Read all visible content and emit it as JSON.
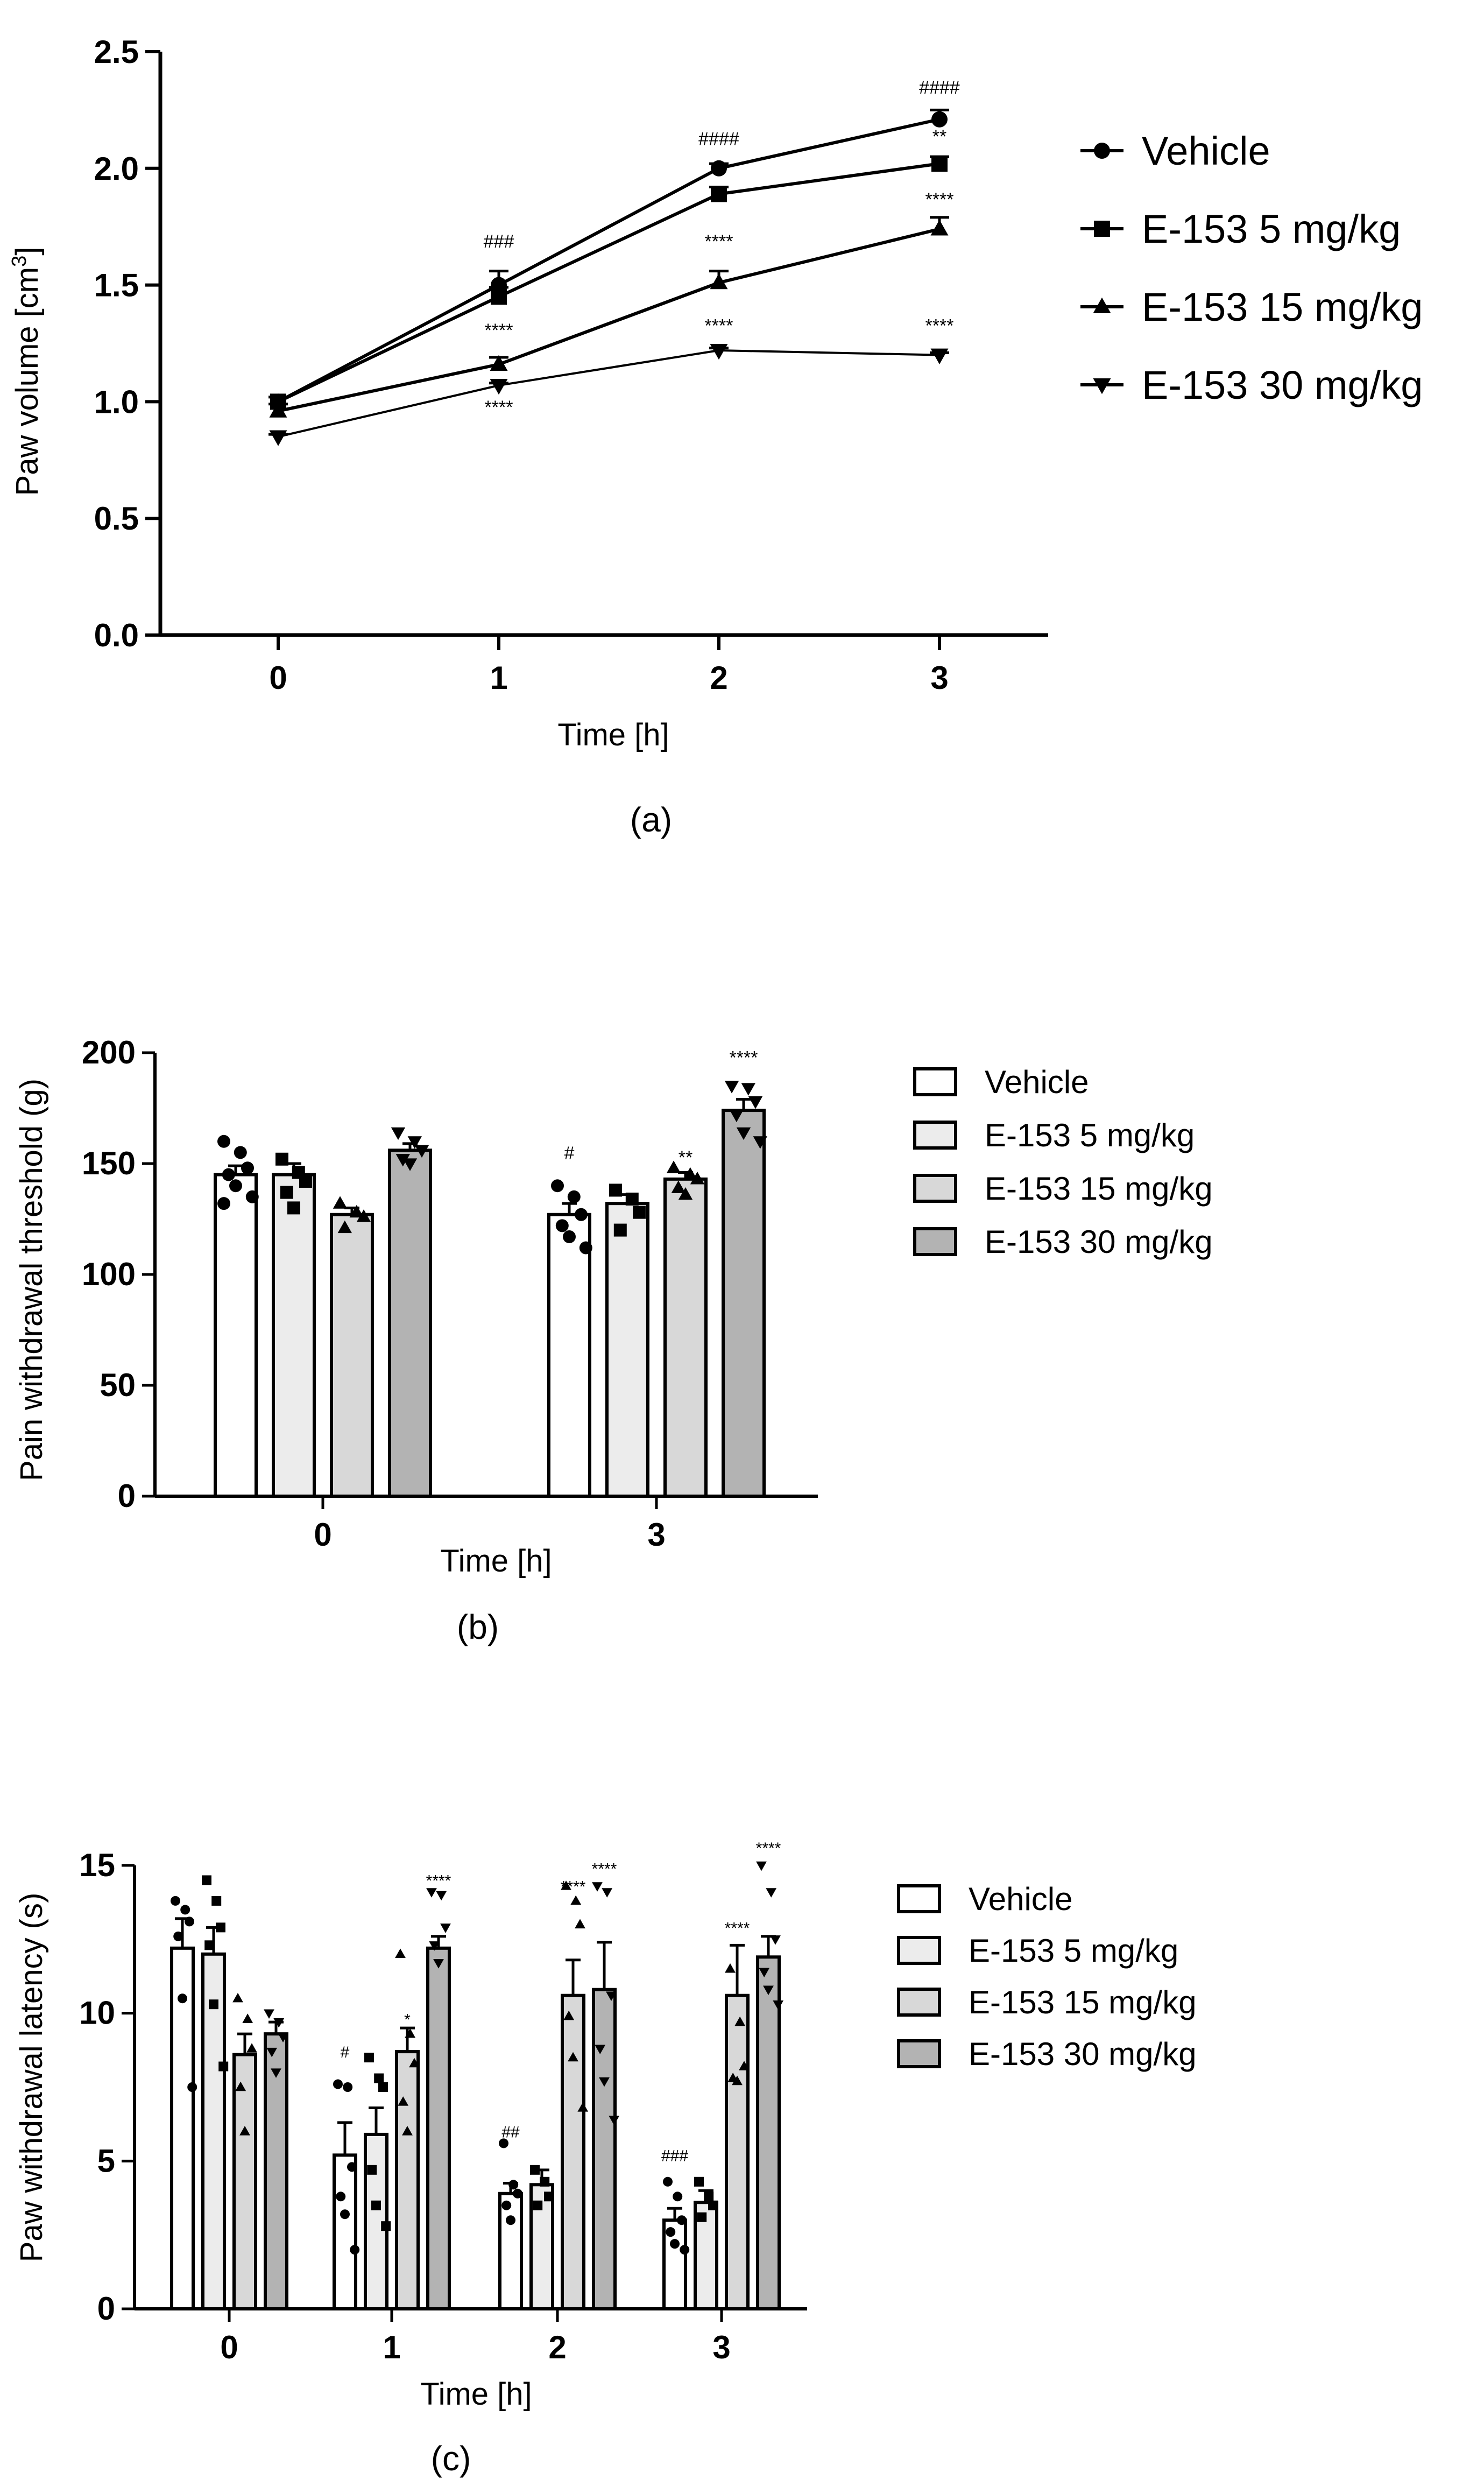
{
  "chart_data": [
    {
      "type": "line",
      "caption": "(a)",
      "xlabel": "Time [h]",
      "ylabel": "Paw volume [cm",
      "ylabel_sup": "3",
      "ylabel_end": "]",
      "x": [
        0,
        1,
        2,
        3
      ],
      "xticks": [
        "0",
        "1",
        "2",
        "3"
      ],
      "ylim": [
        0,
        2.5
      ],
      "yticks": [
        "0.0",
        "0.5",
        "1.0",
        "1.5",
        "2.0",
        "2.5"
      ],
      "series": [
        {
          "name": "Vehicle",
          "marker": "circle",
          "values": [
            1.0,
            1.5,
            2.0,
            2.21
          ],
          "errors": [
            0.02,
            0.06,
            0.02,
            0.04
          ]
        },
        {
          "name": "E-153 5 mg/kg",
          "marker": "square",
          "values": [
            1.0,
            1.45,
            1.89,
            2.02
          ],
          "errors": [
            0.02,
            0.04,
            0.03,
            0.03
          ]
        },
        {
          "name": "E-153 15 mg/kg",
          "marker": "triangle-up",
          "values": [
            0.96,
            1.16,
            1.51,
            1.74
          ],
          "errors": [
            0.03,
            0.03,
            0.05,
            0.05
          ]
        },
        {
          "name": "E-153 30 mg/kg",
          "marker": "triangle-down",
          "values": [
            0.85,
            1.07,
            1.22,
            1.2
          ],
          "errors": [
            0.01,
            0.01,
            0.01,
            0.01
          ]
        }
      ],
      "annotations": [
        {
          "x": 1,
          "y": 1.66,
          "text": "###"
        },
        {
          "x": 1,
          "y": 1.28,
          "text": "****"
        },
        {
          "x": 1,
          "y": 0.95,
          "text": "****"
        },
        {
          "x": 2,
          "y": 2.1,
          "text": "####"
        },
        {
          "x": 2,
          "y": 1.66,
          "text": "****"
        },
        {
          "x": 2,
          "y": 1.3,
          "text": "****"
        },
        {
          "x": 3,
          "y": 2.32,
          "text": "####"
        },
        {
          "x": 3,
          "y": 2.11,
          "text": "**"
        },
        {
          "x": 3,
          "y": 1.84,
          "text": "****"
        },
        {
          "x": 3,
          "y": 1.3,
          "text": "****"
        }
      ]
    },
    {
      "type": "bar",
      "caption": "(b)",
      "xlabel": "Time [h]",
      "ylabel": "Pain withdrawal threshold (g)",
      "categories": [
        "0",
        "3"
      ],
      "ylim": [
        0,
        200
      ],
      "yticks": [
        "0",
        "50",
        "100",
        "150",
        "200"
      ],
      "series": [
        {
          "name": "Vehicle",
          "color": "#ffffff",
          "marker": "circle",
          "values": [
            145,
            127
          ],
          "errors": [
            4,
            5
          ],
          "points": [
            [
              160,
              155,
              148,
              145,
              140,
              135,
              132
            ],
            [
              140,
              135,
              127,
              122,
              117,
              112
            ]
          ]
        },
        {
          "name": "E-153 5 mg/kg",
          "color": "#ececec",
          "marker": "square",
          "values": [
            145,
            132
          ],
          "errors": [
            5,
            4
          ],
          "points": [
            [
              152,
              146,
              142,
              137,
              130
            ],
            [
              138,
              134,
              128,
              120
            ]
          ]
        },
        {
          "name": "E-153 15 mg/kg",
          "color": "#d8d8d8",
          "marker": "triangle-up",
          "values": [
            127,
            143
          ],
          "errors": [
            3,
            3
          ],
          "points": [
            [
              132,
              128,
              126,
              121
            ],
            [
              148,
              145,
              143,
              139,
              136
            ]
          ]
        },
        {
          "name": "E-153 30 mg/kg",
          "color": "#b3b3b3",
          "marker": "triangle-down",
          "values": [
            156,
            174
          ],
          "errors": [
            3,
            5
          ],
          "points": [
            [
              164,
              160,
              156,
              152,
              150
            ],
            [
              185,
              184,
              178,
              172,
              164,
              160
            ]
          ]
        }
      ],
      "annotations": [
        {
          "category": 1,
          "series": 0,
          "y": 152,
          "text": "#"
        },
        {
          "category": 1,
          "series": 2,
          "y": 150,
          "text": "**"
        },
        {
          "category": 1,
          "series": 3,
          "y": 195,
          "text": "****"
        }
      ]
    },
    {
      "type": "bar",
      "caption": "(c)",
      "xlabel": "Time [h]",
      "ylabel": "Paw withdrawal latency (s)",
      "categories": [
        "0",
        "1",
        "2",
        "3"
      ],
      "ylim": [
        0,
        15
      ],
      "yticks": [
        "0",
        "5",
        "10",
        "15"
      ],
      "series": [
        {
          "name": "Vehicle",
          "color": "#ffffff",
          "marker": "circle",
          "values": [
            12.2,
            5.2,
            3.9,
            3.0
          ],
          "errors": [
            1.0,
            1.1,
            0.35,
            0.4
          ],
          "points": [
            [
              13.8,
              13.5,
              13.1,
              12.6,
              10.5,
              7.5
            ],
            [
              7.6,
              7.5,
              4.8,
              3.8,
              3.2,
              2.0
            ],
            [
              5.6,
              4.2,
              3.9,
              3.5,
              3.0
            ],
            [
              4.3,
              3.8,
              3.0,
              2.6,
              2.2,
              2.0
            ]
          ]
        },
        {
          "name": "E-153 5 mg/kg",
          "color": "#ececec",
          "marker": "square",
          "values": [
            12.0,
            5.9,
            4.2,
            3.6
          ],
          "errors": [
            0.9,
            0.9,
            0.5,
            0.4
          ],
          "points": [
            [
              14.5,
              13.8,
              12.9,
              12.3,
              10.3,
              8.2
            ],
            [
              8.5,
              7.8,
              7.5,
              4.7,
              3.5,
              2.8
            ],
            [
              4.7,
              4.3,
              3.8,
              3.5
            ],
            [
              4.3,
              3.8,
              3.5,
              3.1
            ]
          ]
        },
        {
          "name": "E-153 15 mg/kg",
          "color": "#d8d8d8",
          "marker": "triangle-up",
          "values": [
            8.6,
            8.7,
            10.6,
            10.6
          ],
          "errors": [
            0.7,
            0.8,
            1.2,
            1.7
          ],
          "points": [
            [
              10.5,
              9.8,
              8.8,
              7.5,
              6.0
            ],
            [
              12.0,
              9.3,
              8.3,
              7.0,
              6.0
            ],
            [
              14.3,
              13.8,
              13.0,
              9.9,
              8.5,
              6.8
            ],
            [
              11.5,
              9.7,
              8.2,
              7.8,
              7.7
            ]
          ]
        },
        {
          "name": "E-153 30 mg/kg",
          "color": "#b3b3b3",
          "marker": "triangle-down",
          "values": [
            9.3,
            12.2,
            10.8,
            11.9
          ],
          "errors": [
            0.4,
            0.4,
            1.6,
            0.7
          ],
          "points": [
            [
              10.0,
              9.7,
              9.2,
              8.7,
              8.0
            ],
            [
              14.1,
              14.0,
              12.9,
              12.3,
              11.7
            ],
            [
              14.3,
              14.1,
              10.6,
              8.8,
              7.7,
              6.4
            ],
            [
              15.0,
              14.1,
              12.5,
              11.4,
              10.8,
              10.3
            ]
          ]
        }
      ],
      "annotations": [
        {
          "category": 1,
          "series": 0,
          "y": 8.5,
          "text": "#"
        },
        {
          "category": 1,
          "series": 2,
          "y": 9.6,
          "text": "*"
        },
        {
          "category": 1,
          "series": 3,
          "y": 14.3,
          "text": "****"
        },
        {
          "category": 2,
          "series": 0,
          "y": 5.8,
          "text": "##"
        },
        {
          "category": 2,
          "series": 2,
          "y": 14.1,
          "text": "****"
        },
        {
          "category": 2,
          "series": 3,
          "y": 14.7,
          "text": "****"
        },
        {
          "category": 3,
          "series": 0,
          "y": 5.0,
          "text": "###"
        },
        {
          "category": 3,
          "series": 2,
          "y": 12.7,
          "text": "****"
        },
        {
          "category": 3,
          "series": 3,
          "y": 15.4,
          "text": "****"
        }
      ]
    }
  ]
}
